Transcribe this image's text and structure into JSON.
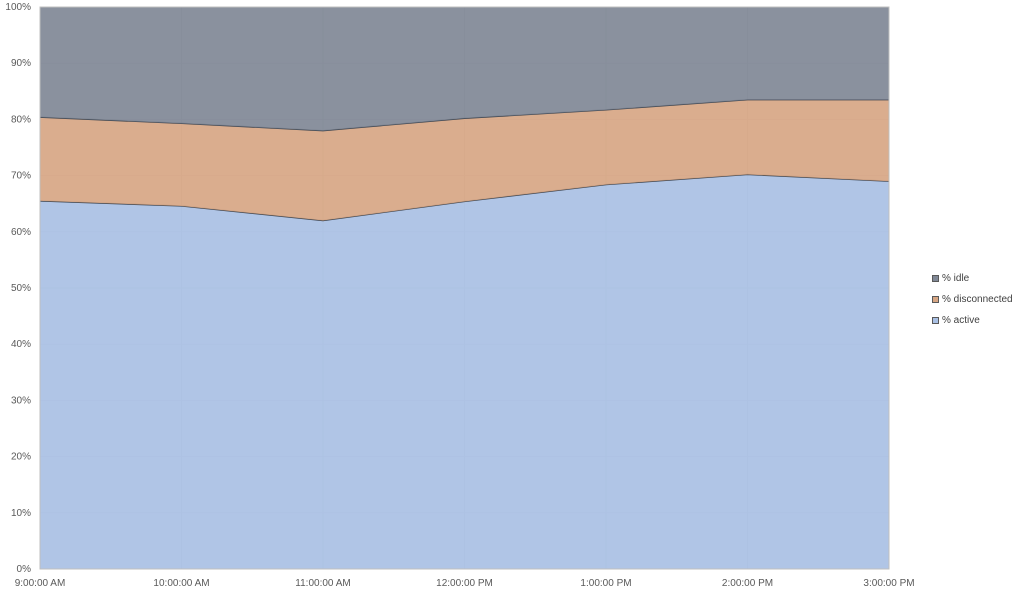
{
  "chart_data": {
    "type": "area",
    "stacked": true,
    "percent_stacked": true,
    "categories": [
      "9:00:00 AM",
      "10:00:00 AM",
      "11:00:00 AM",
      "12:00:00 PM",
      "1:00:00 PM",
      "2:00:00 PM",
      "3:00:00 PM"
    ],
    "y_ticks": [
      "0%",
      "10%",
      "20%",
      "30%",
      "40%",
      "50%",
      "60%",
      "70%",
      "80%",
      "90%",
      "100%"
    ],
    "ylim": [
      0,
      100
    ],
    "grid": true,
    "legend_position": "right",
    "series": [
      {
        "name": "% active",
        "color": "#a9c0e4",
        "values": [
          65.5,
          64.6,
          62.0,
          65.4,
          68.4,
          70.2,
          69.0
        ]
      },
      {
        "name": "% disconnected",
        "color": "#d7a684",
        "values": [
          14.9,
          14.7,
          16.0,
          14.8,
          13.3,
          13.3,
          14.5
        ]
      },
      {
        "name": "% idle",
        "color": "#808896",
        "values": [
          19.6,
          20.7,
          22.0,
          19.8,
          18.3,
          16.5,
          16.5
        ]
      }
    ],
    "legend_order": [
      "% idle",
      "% disconnected",
      "% active"
    ]
  }
}
